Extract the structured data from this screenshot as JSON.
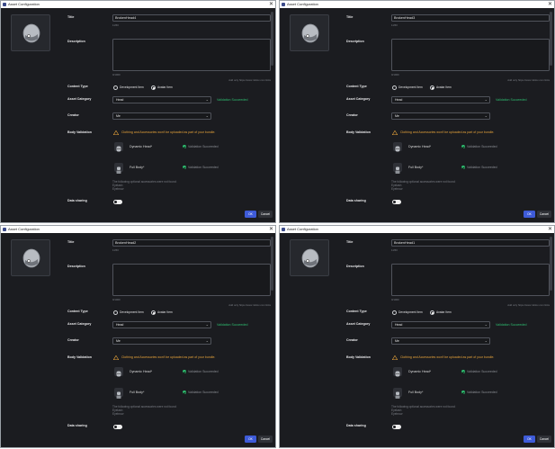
{
  "common": {
    "window_title": "Asset Configuration",
    "close_glyph": "✕",
    "title_label": "Title",
    "char_count": "11/50",
    "description_label": "Description",
    "desc_count": "0/1000",
    "add_hint": "Add only https://www.roblox.com links",
    "content_type_label": "Content Type",
    "radio_dev": "Development Item",
    "radio_avatar": "Avatar Item",
    "asset_category_label": "Asset Category",
    "category_value": "Head",
    "validation_succeeded": "Validation Succeeded",
    "creator_label": "Creator",
    "creator_value": "Me",
    "body_validation_label": "Body Validation",
    "warning_text": "Clothing and Accessories won't be uploaded as part of your bundle.",
    "dynamic_head_label": "Dynamic Head*",
    "full_body_label": "Full Body*",
    "validation_status": "Validation Succeeded",
    "optional_missing": "The following optional accessories were not found:",
    "missing_1": "Eyelash",
    "missing_2": "Eyebrow",
    "data_sharing_label": "Data sharing",
    "ok_label": "OK",
    "cancel_label": "Cancel",
    "accent_color": "#3e5bd8",
    "success_color": "#2fbf71",
    "warning_color": "#e8a43a"
  },
  "windows": [
    {
      "title_value": "BrokenHead4"
    },
    {
      "title_value": "BrokenHead3"
    },
    {
      "title_value": "BrokenHead2"
    },
    {
      "title_value": "BrokenHead1"
    }
  ]
}
